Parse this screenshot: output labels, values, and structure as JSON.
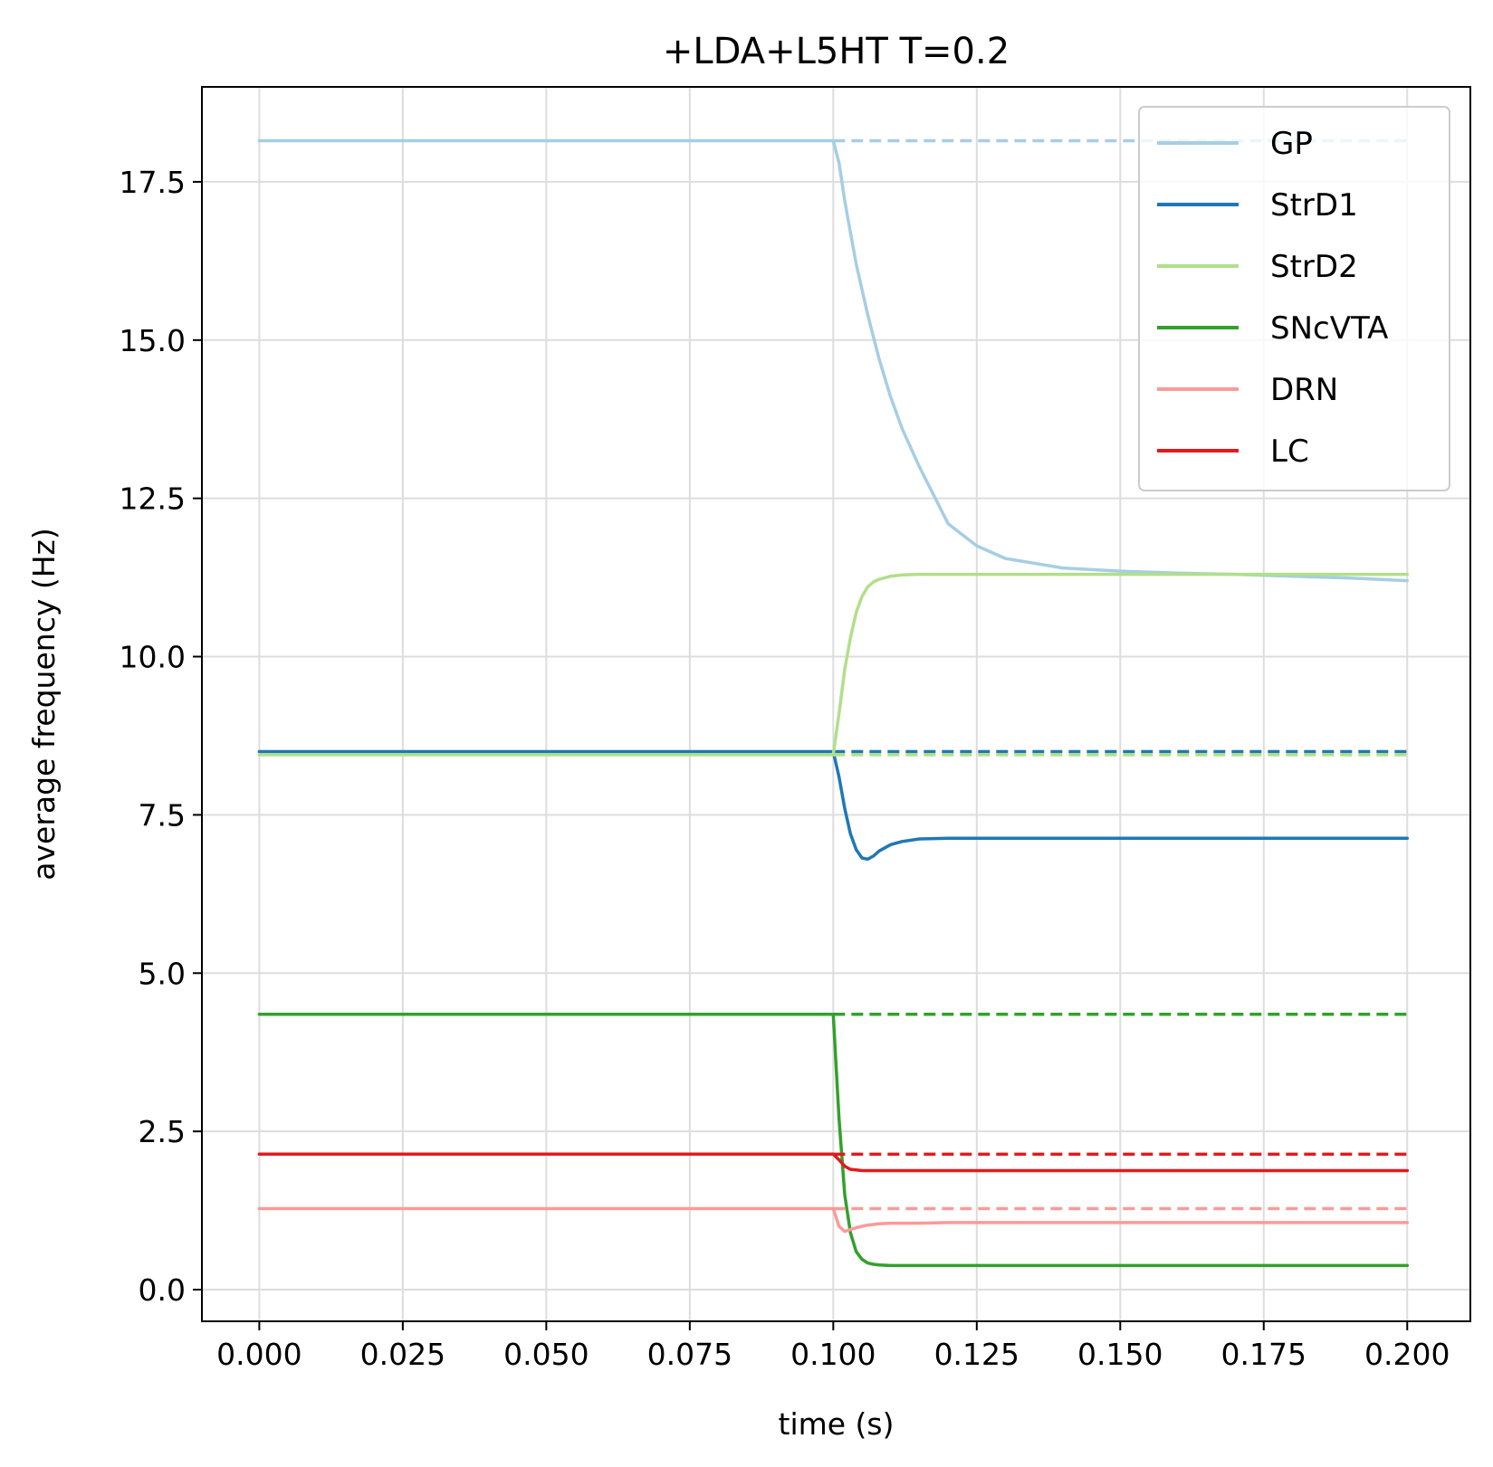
{
  "chart_data": {
    "type": "line",
    "title": "+LDA+L5HT T=0.2",
    "xlabel": "time (s)",
    "ylabel": "average frequency (Hz)",
    "xlim": [
      -0.01,
      0.211
    ],
    "ylim": [
      -0.5,
      19.0
    ],
    "xticks": [
      0.0,
      0.025,
      0.05,
      0.075,
      0.1,
      0.125,
      0.15,
      0.175,
      0.2
    ],
    "xtick_labels": [
      "0.000",
      "0.025",
      "0.050",
      "0.075",
      "0.100",
      "0.125",
      "0.150",
      "0.175",
      "0.200"
    ],
    "yticks": [
      0.0,
      2.5,
      5.0,
      7.5,
      10.0,
      12.5,
      15.0,
      17.5
    ],
    "ytick_labels": [
      "0.0",
      "2.5",
      "5.0",
      "7.5",
      "10.0",
      "12.5",
      "15.0",
      "17.5"
    ],
    "grid": true,
    "legend_position": "top-right",
    "x": [
      0.0,
      0.1,
      0.101,
      0.102,
      0.103,
      0.104,
      0.105,
      0.106,
      0.107,
      0.108,
      0.11,
      0.112,
      0.115,
      0.12,
      0.125,
      0.13,
      0.14,
      0.15,
      0.16,
      0.17,
      0.18,
      0.19,
      0.2
    ],
    "series": [
      {
        "name": "GP",
        "color": "#a6cee3",
        "values": [
          18.15,
          18.15,
          17.8,
          17.2,
          16.7,
          16.2,
          15.8,
          15.4,
          15.05,
          14.7,
          14.1,
          13.6,
          13.0,
          12.1,
          11.75,
          11.55,
          11.4,
          11.35,
          11.32,
          11.3,
          11.27,
          11.24,
          11.2
        ],
        "baseline": 18.15
      },
      {
        "name": "StrD1",
        "color": "#1f78b4",
        "values": [
          8.5,
          8.5,
          8.1,
          7.6,
          7.2,
          6.95,
          6.82,
          6.8,
          6.85,
          6.93,
          7.03,
          7.08,
          7.12,
          7.13,
          7.13,
          7.13,
          7.13,
          7.13,
          7.13,
          7.13,
          7.13,
          7.13,
          7.13
        ],
        "baseline": 8.5
      },
      {
        "name": "StrD2",
        "color": "#b2df8a",
        "values": [
          8.45,
          8.45,
          9.1,
          9.8,
          10.3,
          10.7,
          10.95,
          11.1,
          11.18,
          11.22,
          11.27,
          11.29,
          11.3,
          11.3,
          11.3,
          11.3,
          11.3,
          11.3,
          11.3,
          11.3,
          11.3,
          11.3,
          11.3
        ],
        "baseline": 8.45
      },
      {
        "name": "SNcVTA",
        "color": "#33a02c",
        "values": [
          4.35,
          4.35,
          2.7,
          1.5,
          0.9,
          0.6,
          0.48,
          0.42,
          0.4,
          0.39,
          0.38,
          0.38,
          0.38,
          0.38,
          0.38,
          0.38,
          0.38,
          0.38,
          0.38,
          0.38,
          0.38,
          0.38,
          0.38
        ],
        "baseline": 4.35
      },
      {
        "name": "DRN",
        "color": "#fb9a99",
        "values": [
          1.28,
          1.28,
          1.0,
          0.92,
          0.95,
          0.98,
          1.0,
          1.02,
          1.03,
          1.04,
          1.05,
          1.05,
          1.05,
          1.06,
          1.06,
          1.06,
          1.06,
          1.06,
          1.06,
          1.06,
          1.06,
          1.06,
          1.06
        ],
        "baseline": 1.28
      },
      {
        "name": "LC",
        "color": "#e31a1c",
        "values": [
          2.14,
          2.14,
          2.05,
          1.95,
          1.9,
          1.89,
          1.88,
          1.88,
          1.88,
          1.88,
          1.88,
          1.88,
          1.88,
          1.88,
          1.88,
          1.88,
          1.88,
          1.88,
          1.88,
          1.88,
          1.88,
          1.88,
          1.88
        ],
        "baseline": 2.14
      }
    ]
  }
}
